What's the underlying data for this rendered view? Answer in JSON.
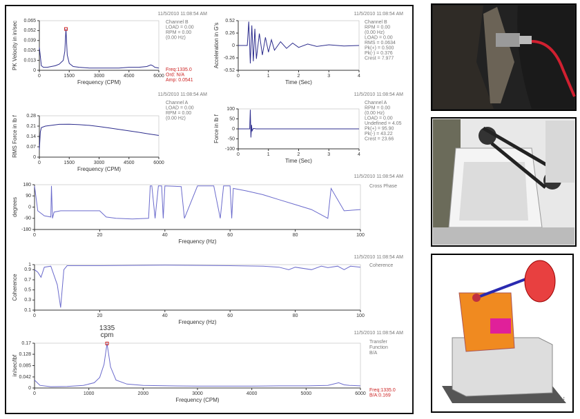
{
  "chart_data": [
    {
      "type": "line",
      "timestamp": "11/5/2010 11:08:54 AM",
      "xlabel": "Frequency (CPM)",
      "ylabel": "PK Velocity in in/sec",
      "info": [
        "Channel B",
        "LOAD = 0.00",
        "RPM = 0.00",
        "(0.00 Hz)"
      ],
      "readout": [
        "Freq:1335.0",
        "Ord: N/A",
        "Amp: 0.0541"
      ],
      "x": [
        0,
        100,
        200,
        400,
        600,
        800,
        1000,
        1200,
        1280,
        1335,
        1400,
        1500,
        1700,
        2000,
        2500,
        3000,
        3500,
        4000,
        4500,
        5000,
        5400,
        5600,
        5700,
        5800,
        6000
      ],
      "values": [
        0.03,
        0.006,
        0.004,
        0.004,
        0.005,
        0.006,
        0.008,
        0.013,
        0.025,
        0.0541,
        0.02,
        0.009,
        0.005,
        0.004,
        0.003,
        0.003,
        0.003,
        0.003,
        0.004,
        0.004,
        0.005,
        0.007,
        0.006,
        0.004,
        0.003
      ],
      "color": "#2b2b8c",
      "xlim": [
        0,
        6000
      ],
      "xticks": [
        0,
        1500,
        3000,
        4500,
        6000
      ],
      "ylim": [
        0,
        0.065
      ],
      "yticks": [
        0,
        0.013,
        0.026,
        0.039,
        0.052,
        0.065
      ],
      "grid": false
    },
    {
      "type": "line",
      "timestamp": "11/5/2010 11:08:54 AM",
      "xlabel": "Time (Sec)",
      "ylabel": "Acceleration in G's",
      "info": [
        "Channel B",
        "RPM = 0.00",
        "(0.00 Hz)",
        "LOAD = 0.00",
        "RMS = 0.0634",
        "Pk(+) = 0.500",
        "Pk(-) = 0.376",
        "Crest = 7.977"
      ],
      "x": [
        0,
        0.3,
        0.35,
        0.4,
        0.45,
        0.5,
        0.55,
        0.6,
        0.7,
        0.8,
        0.9,
        1.0,
        1.1,
        1.2,
        1.4,
        1.6,
        1.8,
        2.0,
        2.3,
        2.6,
        3.0,
        3.5,
        4
      ],
      "values": [
        0,
        0,
        0.5,
        -0.376,
        0.42,
        -0.33,
        0.35,
        -0.28,
        0.25,
        -0.2,
        0.17,
        -0.14,
        0.12,
        -0.1,
        0.08,
        -0.06,
        0.05,
        -0.04,
        0.03,
        -0.02,
        0.015,
        -0.01,
        0
      ],
      "color": "#2b2b8c",
      "xlim": [
        0,
        4
      ],
      "xticks": [
        0,
        1,
        2,
        3,
        4
      ],
      "ylim": [
        -0.52,
        0.52
      ],
      "yticks": [
        -0.52,
        -0.26,
        0,
        0.26,
        0.52
      ],
      "grid": false
    },
    {
      "type": "line",
      "timestamp": "11/5/2010 11:08:54 AM",
      "xlabel": "Frequency (CPM)",
      "ylabel": "RMS Force in lb f",
      "info": [
        "Channel A",
        "LOAD = 0.00",
        "RPM = 0.00",
        "(0.00 Hz)"
      ],
      "x": [
        0,
        50,
        100,
        300,
        600,
        1000,
        1500,
        2000,
        2500,
        3000,
        3500,
        4000,
        4500,
        5000,
        5500,
        6000
      ],
      "values": [
        0.05,
        0.17,
        0.2,
        0.21,
        0.215,
        0.222,
        0.223,
        0.22,
        0.215,
        0.207,
        0.198,
        0.188,
        0.178,
        0.168,
        0.157,
        0.147
      ],
      "color": "#2b2b8c",
      "xlim": [
        0,
        6000
      ],
      "xticks": [
        0,
        1500,
        3000,
        4500,
        6000
      ],
      "ylim": [
        0,
        0.28
      ],
      "yticks": [
        0,
        0.07,
        0.14,
        0.21,
        0.28
      ],
      "grid": false
    },
    {
      "type": "line",
      "timestamp": "11/5/2010 11:08:54 AM",
      "xlabel": "Time (Sec)",
      "ylabel": "Force in lb f",
      "info": [
        "Channel A",
        "RPM = 0.00",
        "(0.00 Hz)",
        "LOAD = 0.00",
        "Undefined = 4.05",
        "Pk(+) = 95.90",
        "Pk(-) = 43.22",
        "Crest = 23.66"
      ],
      "x": [
        0,
        0.38,
        0.4,
        0.42,
        0.44,
        0.46,
        0.5,
        0.6,
        4
      ],
      "values": [
        0,
        0,
        95.9,
        -43.22,
        20,
        -10,
        2,
        0,
        0
      ],
      "color": "#2b2b8c",
      "xlim": [
        0,
        4
      ],
      "xticks": [
        0,
        1,
        2,
        3,
        4
      ],
      "ylim": [
        -100,
        100
      ],
      "yticks": [
        -100,
        -50,
        0,
        50,
        100
      ],
      "grid": false
    },
    {
      "type": "line",
      "title": "Cross Phase",
      "timestamp": "11/5/2010 11:08:54 AM",
      "xlabel": "Frequency (Hz)",
      "ylabel": "degrees",
      "x": [
        0,
        1,
        2,
        3,
        5,
        5.2,
        5.5,
        6,
        8,
        10,
        15,
        20,
        22,
        25,
        30,
        35,
        35.5,
        36,
        37,
        38,
        39,
        39.5,
        40,
        45,
        46,
        50,
        55,
        57,
        58,
        60,
        60.5,
        61,
        65,
        70,
        75,
        80,
        85,
        90,
        91,
        95,
        100
      ],
      "values": [
        170,
        -30,
        -50,
        -70,
        -80,
        170,
        -90,
        -40,
        -30,
        -30,
        -30,
        -30,
        -80,
        -90,
        -95,
        -90,
        170,
        170,
        -90,
        170,
        170,
        -90,
        170,
        165,
        -90,
        170,
        170,
        -90,
        170,
        170,
        -90,
        150,
        130,
        100,
        60,
        20,
        -20,
        -90,
        150,
        -30,
        -20
      ],
      "color": "#6a6acc",
      "xlim": [
        0,
        100
      ],
      "xticks": [
        0,
        20,
        40,
        60,
        80,
        100
      ],
      "ylim": [
        -180,
        180
      ],
      "yticks": [
        -180,
        -90,
        0,
        90,
        180
      ],
      "grid": false
    },
    {
      "type": "line",
      "title": "Coherence",
      "timestamp": "11/5/2010 11:08:54 AM",
      "xlabel": "Frequency (Hz)",
      "ylabel": "Coherence",
      "x": [
        0,
        1,
        2,
        3,
        5,
        7,
        8,
        9,
        10,
        20,
        40,
        60,
        70,
        75,
        78,
        80,
        85,
        88,
        90,
        93,
        95,
        97,
        100
      ],
      "values": [
        0.9,
        0.85,
        0.75,
        0.95,
        0.97,
        0.6,
        0.15,
        0.9,
        0.98,
        0.98,
        0.99,
        0.98,
        0.97,
        0.95,
        0.9,
        0.95,
        0.9,
        0.97,
        0.94,
        0.97,
        0.9,
        0.97,
        0.95
      ],
      "color": "#6a6acc",
      "xlim": [
        0,
        100
      ],
      "xticks": [
        0,
        20,
        40,
        60,
        80,
        100
      ],
      "ylim": [
        0.1,
        1
      ],
      "yticks": [
        0.1,
        0.3,
        0.5,
        0.7,
        0.9,
        1
      ],
      "grid": false
    },
    {
      "type": "line",
      "title": [
        "Transfer",
        "Function",
        "B/A"
      ],
      "timestamp": "11/5/2010 11:08:54 AM",
      "xlabel": "Frequency (CPM)",
      "ylabel": "in/sec/lbf",
      "annotation": [
        "1335",
        "cpm"
      ],
      "readout": [
        "Freq:1335.0",
        "B/A:0.169"
      ],
      "x": [
        0,
        100,
        300,
        600,
        900,
        1100,
        1200,
        1280,
        1335,
        1400,
        1500,
        1700,
        2000,
        2500,
        3000,
        3500,
        4000,
        4500,
        5000,
        5400,
        5600,
        5700,
        5800,
        6000
      ],
      "values": [
        0.03,
        0.01,
        0.005,
        0.006,
        0.01,
        0.02,
        0.04,
        0.09,
        0.169,
        0.08,
        0.03,
        0.015,
        0.01,
        0.008,
        0.007,
        0.007,
        0.007,
        0.008,
        0.008,
        0.01,
        0.02,
        0.012,
        0.01,
        0.008
      ],
      "color": "#6a6acc",
      "xlim": [
        0,
        6000
      ],
      "xticks": [
        0,
        1000,
        2000,
        3000,
        4000,
        5000,
        6000
      ],
      "ylim": [
        0,
        0.17
      ],
      "yticks": [
        0,
        0.042,
        0.085,
        0.128,
        0.17
      ],
      "grid": false
    }
  ]
}
